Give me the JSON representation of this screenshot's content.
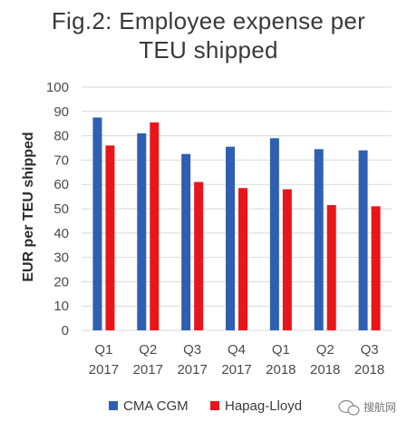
{
  "chart_data": {
    "type": "bar",
    "title_lines": [
      "Fig.2: Employee expense per",
      "TEU shipped"
    ],
    "ylabel": "EUR per TEU shipped",
    "xlabel": "",
    "ylim": [
      0,
      100
    ],
    "yticks": [
      0,
      10,
      20,
      30,
      40,
      50,
      60,
      70,
      80,
      90,
      100
    ],
    "grid": true,
    "legend_position": "bottom",
    "categories": [
      [
        "Q1",
        "2017"
      ],
      [
        "Q2",
        "2017"
      ],
      [
        "Q3",
        "2017"
      ],
      [
        "Q4",
        "2017"
      ],
      [
        "Q1",
        "2018"
      ],
      [
        "Q2",
        "2018"
      ],
      [
        "Q3",
        "2018"
      ]
    ],
    "series": [
      {
        "name": "CMA CGM",
        "color": "#2f5fb3",
        "values": [
          87.5,
          81,
          72.5,
          75.5,
          79,
          74.5,
          74
        ]
      },
      {
        "name": "Hapag-Lloyd",
        "color": "#e8161b",
        "values": [
          76,
          85.5,
          61,
          58.5,
          58,
          51.5,
          51
        ]
      }
    ]
  },
  "watermark": {
    "text": "搜航网",
    "icon": "wechat-icon"
  }
}
